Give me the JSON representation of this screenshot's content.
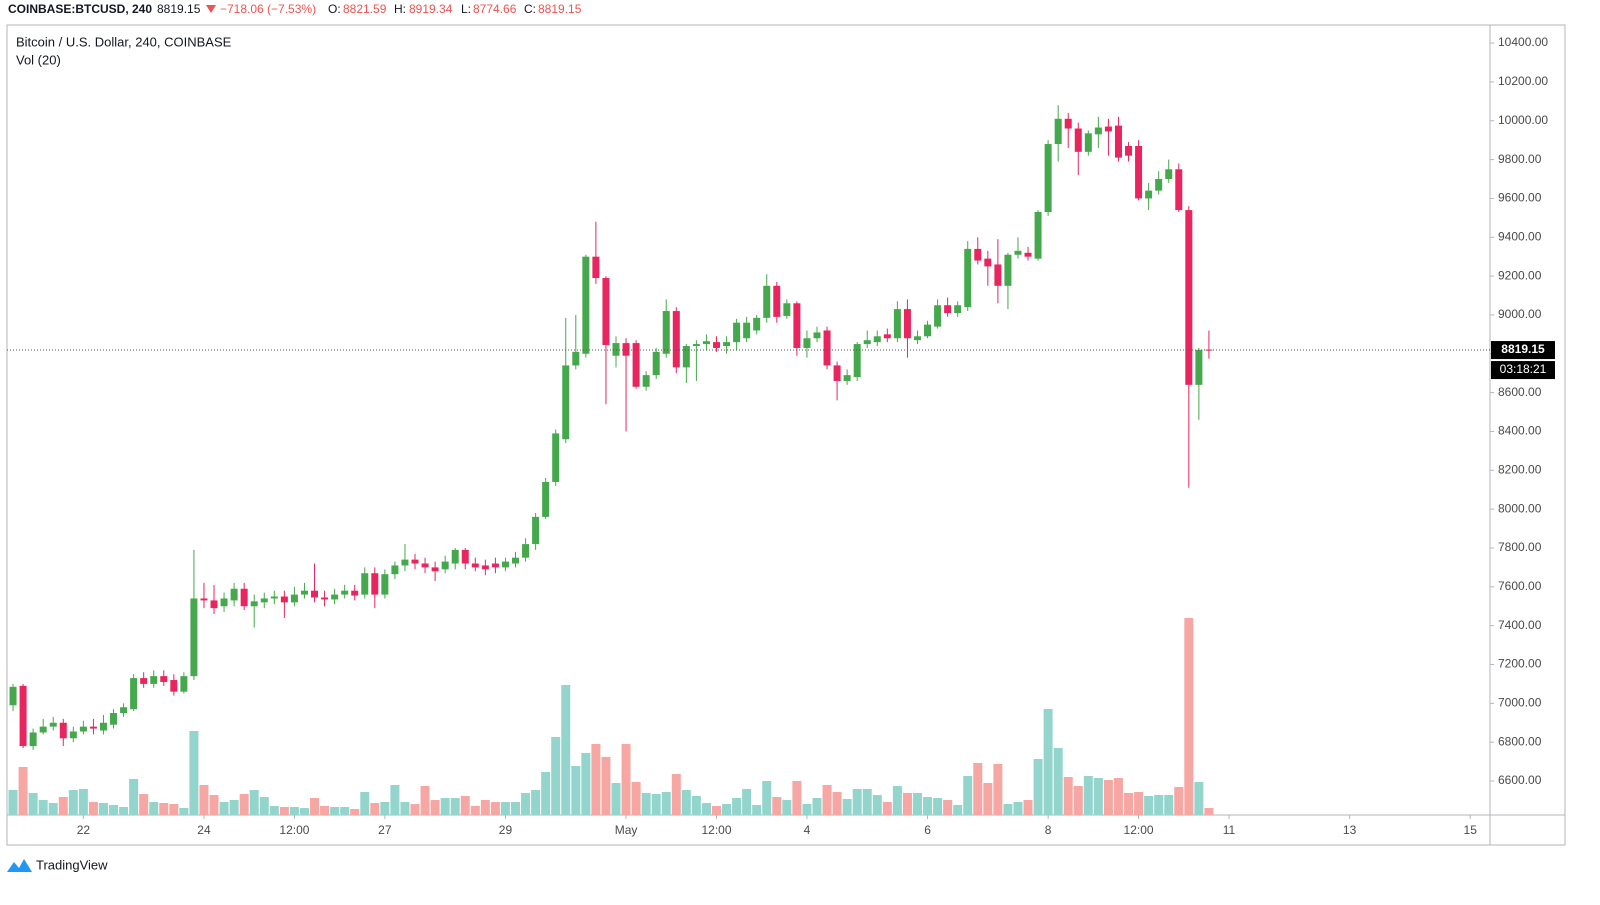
{
  "chart_data": {
    "type": "candlestick",
    "symbol": "COINBASE:BTCUSD, 240",
    "price": "8819.15",
    "change": "−718.06 (−7.53%)",
    "ohlc_labels": [
      "O:",
      "H:",
      "L:",
      "C:"
    ],
    "title": "Bitcoin / U.S. Dollar, 240, COINBASE",
    "indicator": "Vol (20)",
    "countdown": "03:18:21",
    "brand": "TradingView",
    "up_color": "#45a84c",
    "down_color": "#e8255f",
    "volume_up_color": "#93d5cc",
    "volume_down_color": "#f6a7a3",
    "series": {
      "open": [
        6990,
        7090,
        6780,
        6850,
        6880,
        6900,
        6820,
        6855,
        6880,
        6860,
        6890,
        6950,
        6970,
        7130,
        7100,
        7140,
        7120,
        7060,
        7140,
        7540,
        7530,
        7500,
        7530,
        7590,
        7500,
        7520,
        7540,
        7550,
        7520,
        7560,
        7580,
        7545,
        7535,
        7560,
        7580,
        7560,
        7670,
        7560,
        7665,
        7710,
        7740,
        7720,
        7700,
        7690,
        7720,
        7790,
        7720,
        7710,
        7720,
        7700,
        7720,
        7750,
        7820,
        7960,
        8140,
        8360,
        8740,
        8800,
        9300,
        9190,
        8790,
        8855,
        8855,
        8630,
        8690,
        8800,
        9020,
        8730,
        8840,
        8850,
        8860,
        8840,
        8860,
        8880,
        8920,
        8985,
        9150,
        8995,
        9060,
        8830,
        8880,
        8920,
        8740,
        8660,
        8680,
        8850,
        8860,
        8900,
        8880,
        9030,
        8870,
        8890,
        8940,
        9050,
        9010,
        9040,
        9340,
        9290,
        9260,
        9150,
        9310,
        9320,
        9290,
        9530,
        9880,
        10010,
        9960,
        9840,
        9930,
        9970,
        9975,
        9870,
        9870,
        9600,
        9640,
        9700,
        9750,
        9540,
        8640,
        8821.59
      ],
      "high": [
        7100,
        7100,
        6870,
        6920,
        6930,
        6920,
        6880,
        6910,
        6920,
        6940,
        6970,
        7000,
        7150,
        7160,
        7170,
        7170,
        7150,
        7160,
        7790,
        7620,
        7610,
        7570,
        7620,
        7620,
        7560,
        7570,
        7580,
        7580,
        7600,
        7620,
        7720,
        7580,
        7590,
        7610,
        7610,
        7700,
        7700,
        7690,
        7730,
        7820,
        7770,
        7750,
        7730,
        7760,
        7800,
        7800,
        7750,
        7740,
        7750,
        7750,
        7780,
        7850,
        7980,
        8160,
        8410,
        8985,
        9000,
        9310,
        9480,
        9200,
        8890,
        8880,
        8870,
        8710,
        8830,
        9080,
        9040,
        8850,
        8870,
        8900,
        8890,
        8890,
        8980,
        8990,
        9000,
        9210,
        9170,
        9080,
        9070,
        8920,
        8940,
        8940,
        8760,
        8720,
        8860,
        8920,
        8920,
        8930,
        9070,
        9080,
        8920,
        8970,
        9080,
        9090,
        9070,
        9380,
        9400,
        9330,
        9390,
        9320,
        9400,
        9350,
        9540,
        9900,
        10080,
        10040,
        9990,
        9950,
        10020,
        10010,
        10020,
        9890,
        9900,
        9680,
        9740,
        9800,
        9780,
        9560,
        8830,
        8919.34
      ],
      "low": [
        6960,
        6770,
        6760,
        6840,
        6860,
        6780,
        6800,
        6840,
        6840,
        6840,
        6870,
        6930,
        6960,
        7080,
        7080,
        7090,
        7040,
        7050,
        7120,
        7490,
        7460,
        7470,
        7500,
        7480,
        7390,
        7490,
        7510,
        7440,
        7500,
        7540,
        7520,
        7500,
        7510,
        7540,
        7530,
        7540,
        7490,
        7540,
        7640,
        7680,
        7690,
        7670,
        7630,
        7670,
        7690,
        7690,
        7680,
        7660,
        7670,
        7680,
        7700,
        7730,
        7790,
        7950,
        8120,
        8340,
        8720,
        8780,
        9160,
        8540,
        8730,
        8400,
        8620,
        8610,
        8670,
        8780,
        8700,
        8650,
        8660,
        8820,
        8810,
        8800,
        8820,
        8860,
        8900,
        8960,
        8960,
        8980,
        8790,
        8780,
        8860,
        8720,
        8560,
        8640,
        8660,
        8830,
        8840,
        8860,
        8860,
        8780,
        8850,
        8880,
        8930,
        8990,
        8990,
        9020,
        9260,
        9150,
        9060,
        9030,
        9290,
        9280,
        9280,
        9510,
        9790,
        9860,
        9720,
        9820,
        9860,
        9820,
        9790,
        9790,
        9590,
        9540,
        9620,
        9680,
        9530,
        8110,
        8460,
        8774.66
      ],
      "close": [
        7085,
        6780,
        6850,
        6880,
        6900,
        6820,
        6855,
        6880,
        6870,
        6900,
        6950,
        6980,
        7130,
        7100,
        7140,
        7110,
        7060,
        7140,
        7540,
        7530,
        7490,
        7540,
        7590,
        7500,
        7525,
        7540,
        7550,
        7520,
        7560,
        7580,
        7545,
        7535,
        7560,
        7580,
        7555,
        7670,
        7560,
        7665,
        7710,
        7740,
        7720,
        7700,
        7680,
        7730,
        7790,
        7720,
        7700,
        7690,
        7700,
        7730,
        7750,
        7820,
        7960,
        8140,
        8390,
        8740,
        8810,
        9300,
        9190,
        8845,
        8855,
        8790,
        8630,
        8690,
        8810,
        9020,
        8730,
        8840,
        8850,
        8865,
        8830,
        8860,
        8960,
        8960,
        8985,
        9150,
        8990,
        9060,
        8830,
        8880,
        8910,
        8740,
        8660,
        8690,
        8850,
        8870,
        8890,
        8880,
        9030,
        8880,
        8890,
        8950,
        9050,
        9010,
        9050,
        9340,
        9280,
        9250,
        9150,
        9310,
        9330,
        9300,
        9530,
        9880,
        10010,
        9960,
        9840,
        9935,
        9965,
        9945,
        9810,
        9820,
        9600,
        9640,
        9700,
        9750,
        9540,
        8640,
        8820,
        8819.15
      ]
    },
    "volume": [
      25,
      48,
      22,
      15,
      12,
      18,
      25,
      26,
      13,
      12,
      10,
      8,
      36,
      21,
      13,
      12,
      11,
      7,
      84,
      30,
      20,
      13,
      15,
      21,
      25,
      18,
      9,
      8,
      8,
      7,
      17,
      9,
      8,
      8,
      6,
      23,
      12,
      13,
      30,
      13,
      11,
      29,
      15,
      17,
      17,
      19,
      9,
      15,
      13,
      13,
      13,
      22,
      25,
      43,
      78,
      130,
      49,
      62,
      71,
      58,
      32,
      71,
      33,
      22,
      21,
      23,
      41,
      25,
      19,
      12,
      9,
      11,
      17,
      26,
      10,
      34,
      18,
      15,
      34,
      11,
      17,
      30,
      23,
      16,
      26,
      26,
      20,
      13,
      29,
      22,
      22,
      18,
      17,
      15,
      10,
      39,
      52,
      32,
      51,
      11,
      13,
      15,
      56,
      106,
      67,
      38,
      29,
      39,
      37,
      35,
      37,
      22,
      23,
      19,
      20,
      20,
      28,
      197,
      33,
      7
    ],
    "ylim": [
      6425,
      10493
    ],
    "yticks": [
      {
        "value": 6600,
        "label": "6600.00"
      },
      {
        "value": 6800,
        "label": "6800.00"
      },
      {
        "value": 7000,
        "label": "7000.00"
      },
      {
        "value": 7200,
        "label": "7200.00"
      },
      {
        "value": 7400,
        "label": "7400.00"
      },
      {
        "value": 7600,
        "label": "7600.00"
      },
      {
        "value": 7800,
        "label": "7800.00"
      },
      {
        "value": 8000,
        "label": "8000.00"
      },
      {
        "value": 8200,
        "label": "8200.00"
      },
      {
        "value": 8400,
        "label": "8400.00"
      },
      {
        "value": 8600,
        "label": "8600.00"
      },
      {
        "value": 8800,
        "label": "8800.00"
      },
      {
        "value": 9000,
        "label": "9000.00"
      },
      {
        "value": 9200,
        "label": "9200.00"
      },
      {
        "value": 9400,
        "label": "9400.00"
      },
      {
        "value": 9600,
        "label": "9600.00"
      },
      {
        "value": 9800,
        "label": "9800.00"
      },
      {
        "value": 10000,
        "label": "10000.00"
      },
      {
        "value": 10200,
        "label": "10200.00"
      },
      {
        "value": 10400,
        "label": "10400.00"
      }
    ],
    "xlim": [
      -0.6,
      146.97
    ],
    "xticks": [
      {
        "value": 7,
        "label": "22"
      },
      {
        "value": 19,
        "label": "24"
      },
      {
        "value": 28,
        "label": "12:00"
      },
      {
        "value": 37,
        "label": "27"
      },
      {
        "value": 49,
        "label": "29"
      },
      {
        "value": 61,
        "label": "May"
      },
      {
        "value": 70,
        "label": "12:00"
      },
      {
        "value": 79,
        "label": "4"
      },
      {
        "value": 91,
        "label": "6"
      },
      {
        "value": 103,
        "label": "8"
      },
      {
        "value": 112,
        "label": "12:00"
      },
      {
        "value": 121,
        "label": "11"
      },
      {
        "value": 133,
        "label": "13"
      },
      {
        "value": 145,
        "label": "15"
      }
    ]
  }
}
